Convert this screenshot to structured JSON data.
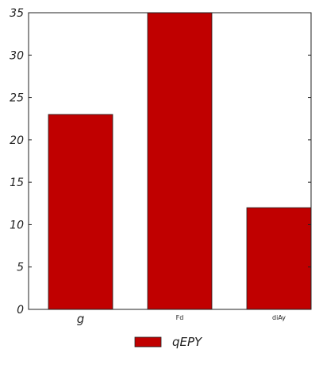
{
  "chart_data": {
    "type": "bar",
    "categories": [
      "g",
      "Fd",
      "diAy"
    ],
    "series": [
      {
        "name": "qEPY",
        "values": [
          23,
          35,
          12
        ]
      }
    ],
    "ylim": [
      0,
      35
    ],
    "yticks": [
      0,
      5,
      10,
      15,
      20,
      25,
      30,
      35
    ],
    "bar_color": "#c00000",
    "grid": false,
    "legend_position": "bottom-center"
  }
}
